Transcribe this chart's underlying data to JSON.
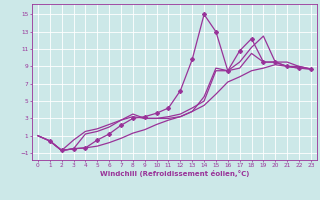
{
  "xlabel": "Windchill (Refroidissement éolien,°C)",
  "bg_color": "#cce8e8",
  "grid_color": "#ffffff",
  "line_color": "#993399",
  "xlim": [
    -0.5,
    23.5
  ],
  "ylim": [
    -1.8,
    16.2
  ],
  "xticks": [
    0,
    1,
    2,
    3,
    4,
    5,
    6,
    7,
    8,
    9,
    10,
    11,
    12,
    13,
    14,
    15,
    16,
    17,
    18,
    19,
    20,
    21,
    22,
    23
  ],
  "yticks": [
    -1,
    1,
    3,
    5,
    7,
    9,
    11,
    13,
    15
  ],
  "series": [
    {
      "x": [
        0,
        1,
        2,
        3,
        4,
        5,
        6,
        7,
        8,
        9,
        10,
        11,
        12,
        13,
        14,
        15,
        16,
        17,
        18,
        19,
        20,
        21,
        22,
        23
      ],
      "y": [
        1,
        0.4,
        -0.7,
        -0.5,
        -0.4,
        -0.2,
        0.2,
        0.7,
        1.3,
        1.7,
        2.3,
        2.8,
        3.2,
        3.8,
        4.5,
        5.8,
        7.2,
        7.8,
        8.5,
        8.8,
        9.2,
        9.0,
        8.8,
        8.7
      ],
      "marker": null,
      "linewidth": 0.9
    },
    {
      "x": [
        1,
        2,
        3,
        4,
        5,
        6,
        7,
        8,
        9,
        10,
        11,
        12,
        13,
        14,
        15,
        16,
        17,
        18,
        19,
        20,
        21,
        22,
        23
      ],
      "y": [
        0.4,
        -0.7,
        -0.5,
        -0.4,
        0.5,
        1.2,
        2.2,
        3.0,
        3.2,
        3.6,
        4.2,
        6.2,
        9.8,
        15.0,
        13.0,
        8.5,
        10.8,
        12.2,
        9.5,
        9.5,
        9.0,
        8.8,
        8.7
      ],
      "marker": "D",
      "linewidth": 0.9
    },
    {
      "x": [
        0,
        1,
        2,
        3,
        4,
        5,
        6,
        7,
        8,
        9,
        10,
        11,
        12,
        13,
        14,
        15,
        16,
        17,
        18,
        19,
        20,
        21,
        22,
        23
      ],
      "y": [
        1,
        0.4,
        -0.7,
        -0.5,
        1.2,
        1.5,
        2.0,
        2.8,
        3.5,
        3.0,
        3.0,
        3.0,
        3.2,
        3.8,
        5.5,
        8.8,
        8.5,
        9.5,
        11.2,
        12.5,
        9.5,
        9.5,
        9.0,
        8.7
      ],
      "marker": null,
      "linewidth": 0.9
    },
    {
      "x": [
        0,
        1,
        2,
        3,
        4,
        5,
        6,
        7,
        8,
        9,
        10,
        11,
        12,
        13,
        14,
        15,
        16,
        17,
        18,
        19,
        20,
        21,
        22,
        23
      ],
      "y": [
        1,
        0.4,
        -0.7,
        0.5,
        1.5,
        1.8,
        2.3,
        2.8,
        3.2,
        3.0,
        3.0,
        3.2,
        3.5,
        4.2,
        5.0,
        8.5,
        8.5,
        8.8,
        10.5,
        9.5,
        9.5,
        9.0,
        9.0,
        8.7
      ],
      "marker": null,
      "linewidth": 0.9
    }
  ]
}
